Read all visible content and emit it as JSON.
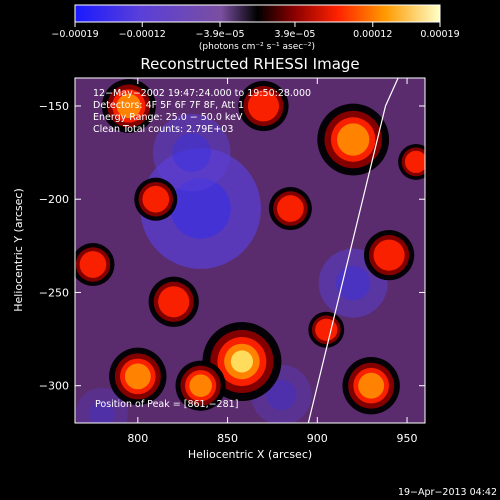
{
  "chart_data": {
    "type": "heatmap",
    "title": "Reconstructed RHESSI Image",
    "xlabel": "Heliocentric X (arcsec)",
    "ylabel": "Heliocentric Y (arcsec)",
    "xlim": [
      765,
      960
    ],
    "ylim": [
      -320,
      -135
    ],
    "xticks": [
      800,
      850,
      900,
      950
    ],
    "yticks": [
      -150,
      -200,
      -250,
      -300
    ],
    "xtick_labels": [
      "800",
      "850",
      "900",
      "950"
    ],
    "ytick_labels": [
      "−150",
      "−200",
      "−250",
      "−300"
    ],
    "colorbar": {
      "range": [
        -0.00019,
        0.00019
      ],
      "ticks": [
        -0.00019,
        -0.00012,
        -3.9e-05,
        3.9e-05,
        0.00012,
        0.00019
      ],
      "tick_labels": [
        "−0.00019",
        "−0.00012",
        "−3.9e−05",
        "3.9e−05",
        "0.00012",
        "0.00019"
      ],
      "units_text": "(photons cm⁻² s⁻¹ asec⁻²)"
    },
    "annotations": [
      "12−May−2002 19:47:24.000 to 19:50:28.000",
      "Detectors: 4F 5F 6F 7F 8F, Att 1",
      "Energy Range: 25.0 − 50.0 keV",
      "Clean     Total counts: 2.79E+03"
    ],
    "peak_label": "Position of Peak = [861,−281]",
    "peak": [
      861,
      -281
    ],
    "limb_line": [
      [
        895,
        -320
      ],
      [
        938,
        -150
      ],
      [
        945,
        -135
      ]
    ],
    "blobs": [
      [
        858,
        -287,
        22,
        1.0
      ],
      [
        835,
        -300,
        14,
        0.7
      ],
      [
        920,
        -168,
        20,
        0.85
      ],
      [
        940,
        -230,
        14,
        0.6
      ],
      [
        800,
        -295,
        16,
        0.7
      ],
      [
        795,
        -150,
        15,
        0.75
      ],
      [
        870,
        -150,
        14,
        0.65
      ],
      [
        930,
        -300,
        16,
        0.8
      ],
      [
        820,
        -255,
        14,
        0.55
      ],
      [
        885,
        -205,
        12,
        0.5
      ],
      [
        955,
        -180,
        10,
        0.55
      ],
      [
        810,
        -200,
        12,
        0.5
      ],
      [
        905,
        -270,
        10,
        0.55
      ],
      [
        775,
        -235,
        12,
        0.5
      ]
    ],
    "negatives": [
      [
        835,
        -205,
        28,
        0.7
      ],
      [
        830,
        -175,
        18,
        0.5
      ],
      [
        920,
        -245,
        16,
        0.5
      ],
      [
        880,
        -305,
        14,
        0.35
      ],
      [
        780,
        -315,
        12,
        0.3
      ]
    ]
  },
  "footer": {
    "timestamp": "19−Apr−2013 04:42"
  }
}
